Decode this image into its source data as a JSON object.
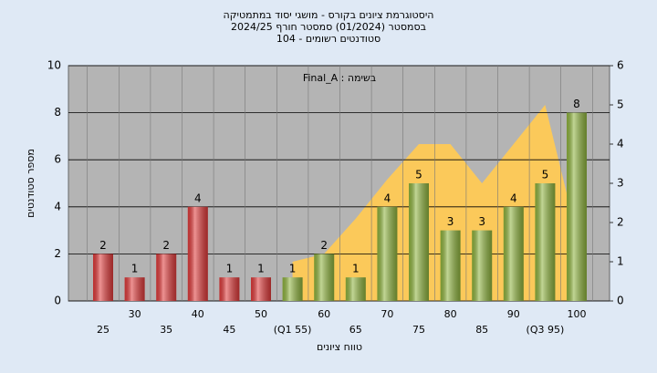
{
  "chart_data": {
    "type": "bar",
    "title_lines": [
      "היסטוגרמת ציונים בקורס - מושגי יסוד במתמטיקה",
      "בסמסטר  (01/2024)  סמסטר חורף 2024/25",
      "סטודנטים רשומים - 104"
    ],
    "annotation": "Final_A : בשימה",
    "y_label": "מספר סטודנטים",
    "x_label": "טווח ציונים",
    "categories": [
      "25",
      "30",
      "35",
      "40",
      "45",
      "50",
      "(Q1 55)",
      "60",
      "65",
      "70",
      "75",
      "80",
      "85",
      "90",
      "(Q3 95)",
      "100"
    ],
    "values": [
      2,
      1,
      2,
      4,
      1,
      1,
      1,
      2,
      1,
      4,
      5,
      3,
      3,
      4,
      5,
      8
    ],
    "colors": [
      "#e03a3a",
      "#e03a3a",
      "#e03a3a",
      "#e03a3a",
      "#e03a3a",
      "#e03a3a",
      "#8fb43e",
      "#8fb43e",
      "#8fb43e",
      "#8fb43e",
      "#8fb43e",
      "#8fb43e",
      "#8fb43e",
      "#8fb43e",
      "#8fb43e",
      "#8fb43e"
    ],
    "area": {
      "type": "area",
      "axis": "y2",
      "color": "#fbc95a",
      "values": [
        null,
        null,
        null,
        null,
        null,
        null,
        1,
        1.2,
        2.1,
        3.1,
        4,
        4,
        3,
        4,
        5,
        1.7
      ]
    },
    "ylim": [
      0,
      10
    ],
    "yticks": [
      0,
      2,
      4,
      6,
      8,
      10
    ],
    "y2lim": [
      0,
      6
    ],
    "y2ticks": [
      0,
      1,
      2,
      3,
      4,
      5,
      6
    ],
    "grid": true
  }
}
